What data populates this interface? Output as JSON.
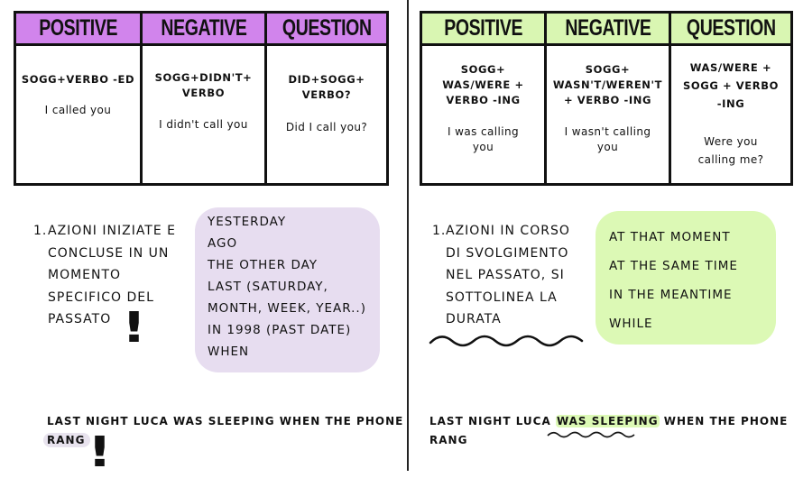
{
  "left": {
    "table": {
      "headers": [
        "POSITIVE",
        "NEGATIVE",
        "QUESTION"
      ],
      "cells": [
        {
          "formula": [
            "SOGG+VERBO -ED"
          ],
          "example": [
            "I called you"
          ]
        },
        {
          "formula": [
            "SOGG+DIDN'T+",
            "VERBO"
          ],
          "example": [
            "I didn't call you"
          ]
        },
        {
          "formula": [
            "DID+SOGG+",
            "VERBO?"
          ],
          "example": [
            "Did I call you?"
          ]
        }
      ]
    },
    "point": {
      "number": "1.",
      "lines": [
        "AZIONI INIZIATE E",
        "CONCLUSE IN UN",
        "MOMENTO",
        "SPECIFICO DEL",
        "PASSATO"
      ],
      "mark": "!"
    },
    "box": {
      "lines": [
        "YESTERDAY",
        "AGO",
        "THE OTHER DAY",
        "LAST (SATURDAY,",
        "MONTH, WEEK, YEAR..)",
        "IN 1998 (PAST DATE)",
        "WHEN"
      ]
    },
    "sentence": {
      "line1": "LAST NIGHT LUCA WAS SLEEPING WHEN THE PHONE",
      "line2": "RANG",
      "mark": "!"
    }
  },
  "right": {
    "table": {
      "headers": [
        "POSITIVE",
        "NEGATIVE",
        "QUESTION"
      ],
      "cells": [
        {
          "formula": [
            "SOGG+",
            "WAS/WERE +",
            "VERBO -ING"
          ],
          "example": [
            "I was calling",
            "you"
          ]
        },
        {
          "formula": [
            "SOGG+",
            "WASN'T/WEREN'T",
            "+ VERBO -ING"
          ],
          "example": [
            "I wasn't calling",
            "you"
          ]
        },
        {
          "formula": [
            "WAS/WERE +",
            "SOGG + VERBO",
            "-ING"
          ],
          "example": [
            "Were you",
            "calling me?"
          ]
        }
      ]
    },
    "point": {
      "number": "1.",
      "lines": [
        "AZIONI IN CORSO",
        "DI SVOLGIMENTO",
        "NEL PASSATO, SI",
        "SOTTOLINEA LA",
        "DURATA"
      ]
    },
    "box": {
      "lines": [
        "AT THAT MOMENT",
        "AT THE SAME TIME",
        "IN THE MEANTIME",
        "WHILE"
      ]
    },
    "sentence": {
      "before": "LAST NIGHT LUCA ",
      "highlight": "WAS SLEEPING",
      "after": " WHEN THE PHONE",
      "line2": "RANG"
    }
  }
}
